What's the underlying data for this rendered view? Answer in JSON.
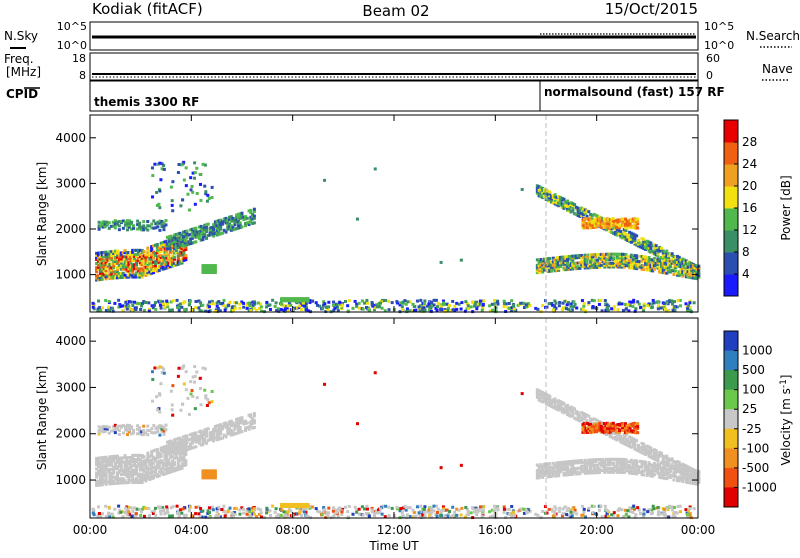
{
  "header": {
    "title_left": "Kodiak (fitACF)",
    "title_center": "Beam 02",
    "title_right": "15/Oct/2015"
  },
  "colors": {
    "power_scale": [
      "#1a1aff",
      "#2b4fb0",
      "#3b8f66",
      "#50b84c",
      "#f3e010",
      "#f0a020",
      "#f06010",
      "#e80000"
    ],
    "velocity_scale": [
      "#1f3fbf",
      "#2f7fbf",
      "#3c9a4c",
      "#6cc84a",
      "#c8c8c8",
      "#f0c020",
      "#f09020",
      "#f05010",
      "#e00000"
    ],
    "scatter_gray": "#c6c6c6"
  },
  "top_panels": {
    "nsky": {
      "label": "N.Sky",
      "ticks_left": [
        "10^5",
        "10^0"
      ],
      "right_label": "N.Search",
      "ticks_right": [
        "10^5",
        "10^0"
      ]
    },
    "freq": {
      "label_line1": "Freq.",
      "label_line2": "[MHz]",
      "ticks_left": [
        "18",
        "8"
      ],
      "right_label": "Nave",
      "ticks_right": [
        "60",
        "0"
      ]
    },
    "cpid": {
      "label": "CPID",
      "program_1": "themis 3300 RF",
      "program_2": "normalsound (fast) 157 RF"
    }
  },
  "chart_data": [
    {
      "type": "heatmap",
      "name": "Power",
      "xlabel": "",
      "ylabel": "Slant Range [km]",
      "x_unit": "hours UT",
      "xlim": [
        0,
        24
      ],
      "ylim": [
        180,
        4500
      ],
      "yticks": [
        1000,
        2000,
        3000,
        4000
      ],
      "colorbar": {
        "label": "Power [dB]",
        "range": [
          0,
          32
        ],
        "ticks": [
          4,
          8,
          12,
          16,
          20,
          24,
          28
        ]
      },
      "regions": [
        {
          "t0": 0.2,
          "t1": 6.5,
          "r0": 850,
          "r1": 2450,
          "level": "mixed"
        },
        {
          "t0": 17.6,
          "t1": 24,
          "r0": 900,
          "r1": 2900,
          "level": "mixed"
        },
        {
          "t0": 0,
          "t1": 24,
          "r0": 200,
          "r1": 500,
          "level": "sparse"
        }
      ]
    },
    {
      "type": "heatmap",
      "name": "Velocity",
      "xlabel": "Time UT",
      "ylabel": "Slant Range [km]",
      "xticks": [
        "00:00",
        "04:00",
        "08:00",
        "12:00",
        "16:00",
        "20:00",
        "00:00"
      ],
      "xlim": [
        0,
        24
      ],
      "ylim": [
        180,
        4500
      ],
      "yticks": [
        1000,
        2000,
        3000,
        4000
      ],
      "colorbar": {
        "label": "Velocity [m s^-1]",
        "ticks": [
          "1000",
          "500",
          "100",
          "25",
          "-25",
          "-100",
          "-500",
          "-1000"
        ]
      }
    }
  ],
  "axis": {
    "xlabel": "Time UT",
    "xticks": [
      "00:00",
      "04:00",
      "08:00",
      "12:00",
      "16:00",
      "20:00",
      "00:00"
    ],
    "yticks": [
      "1000",
      "2000",
      "3000",
      "4000"
    ],
    "ylabel": "Slant Range [km]"
  },
  "colorbars": {
    "power": {
      "label": "Power [dB]",
      "ticks": [
        "28",
        "24",
        "20",
        "16",
        "12",
        "8",
        "4"
      ]
    },
    "velocity": {
      "label": "Velocity [m s",
      "sup": "-1",
      "label_end": "]",
      "ticks": [
        "1000",
        "500",
        "100",
        "25",
        "-25",
        "-100",
        "-500",
        "-1000"
      ]
    }
  }
}
